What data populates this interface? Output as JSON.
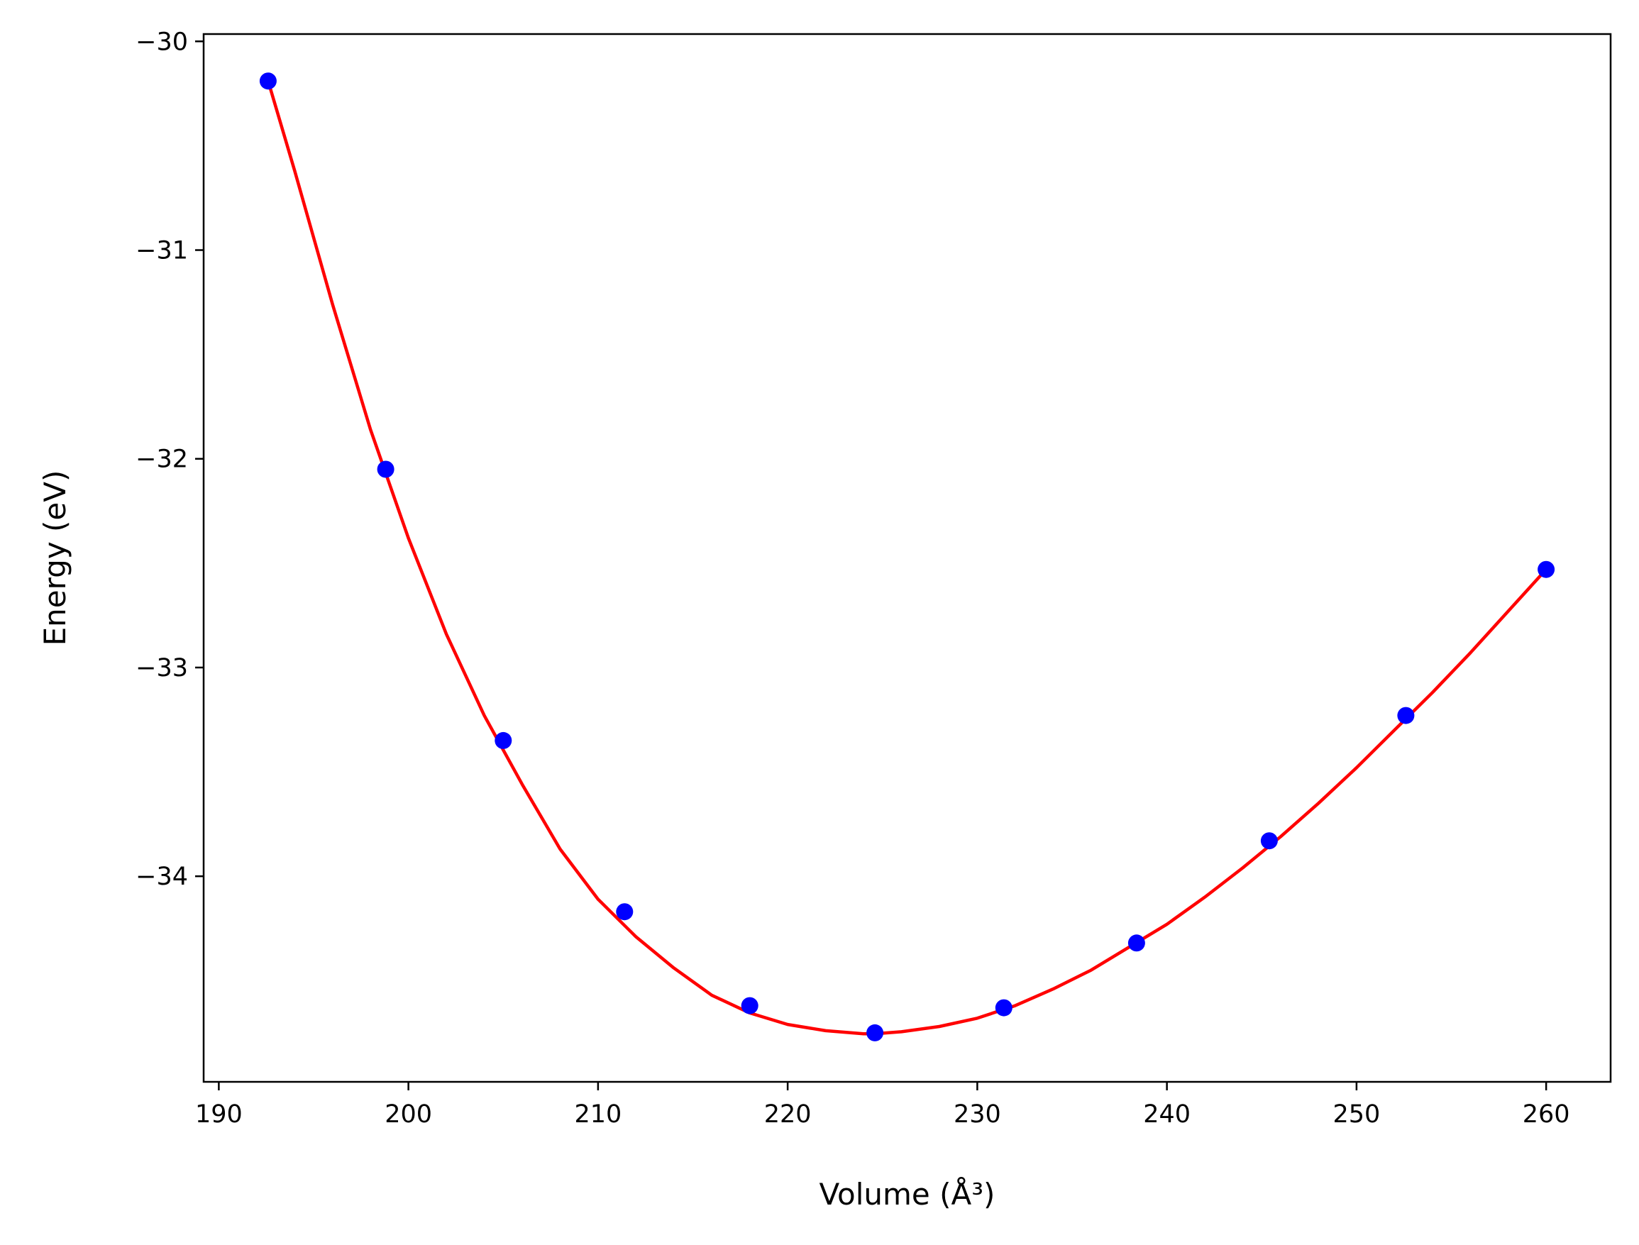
{
  "chart_data": {
    "type": "line",
    "title": "",
    "xlabel": "Volume (Å³)",
    "ylabel": "Energy (eV)",
    "xlim": [
      189.2,
      263.4
    ],
    "ylim": [
      -34.985,
      -29.965
    ],
    "xticks": [
      190,
      200,
      210,
      220,
      230,
      240,
      250,
      260
    ],
    "yticks": [
      -34,
      -33,
      -32,
      -31,
      -30
    ],
    "grid": false,
    "legend": "none",
    "series": [
      {
        "kind": "fitted-curve",
        "color": "#ff0000",
        "x": [
          192.6,
          194,
          196,
          198,
          200,
          202,
          204,
          206,
          208,
          210,
          212,
          214,
          216,
          218,
          220,
          222,
          224,
          224.6,
          226,
          228,
          230,
          232,
          234,
          236,
          238,
          240,
          242,
          244,
          246,
          248,
          250,
          252,
          254,
          256,
          258,
          260
        ],
        "y": [
          -30.19,
          -30.62,
          -31.26,
          -31.86,
          -32.38,
          -32.84,
          -33.23,
          -33.56,
          -33.87,
          -34.11,
          -34.29,
          -34.44,
          -34.57,
          -34.655,
          -34.71,
          -34.74,
          -34.755,
          -34.755,
          -34.745,
          -34.72,
          -34.68,
          -34.62,
          -34.54,
          -34.45,
          -34.34,
          -34.23,
          -34.1,
          -33.96,
          -33.81,
          -33.65,
          -33.48,
          -33.3,
          -33.12,
          -32.93,
          -32.73,
          -32.53
        ]
      },
      {
        "kind": "data-points",
        "color": "#0000ff",
        "x": [
          192.6,
          198.8,
          205.0,
          211.4,
          218.0,
          224.6,
          231.4,
          238.4,
          245.4,
          252.6,
          260.0
        ],
        "y": [
          -30.19,
          -32.05,
          -33.35,
          -34.17,
          -34.62,
          -34.75,
          -34.63,
          -34.32,
          -33.83,
          -33.23,
          -32.53
        ]
      }
    ]
  }
}
